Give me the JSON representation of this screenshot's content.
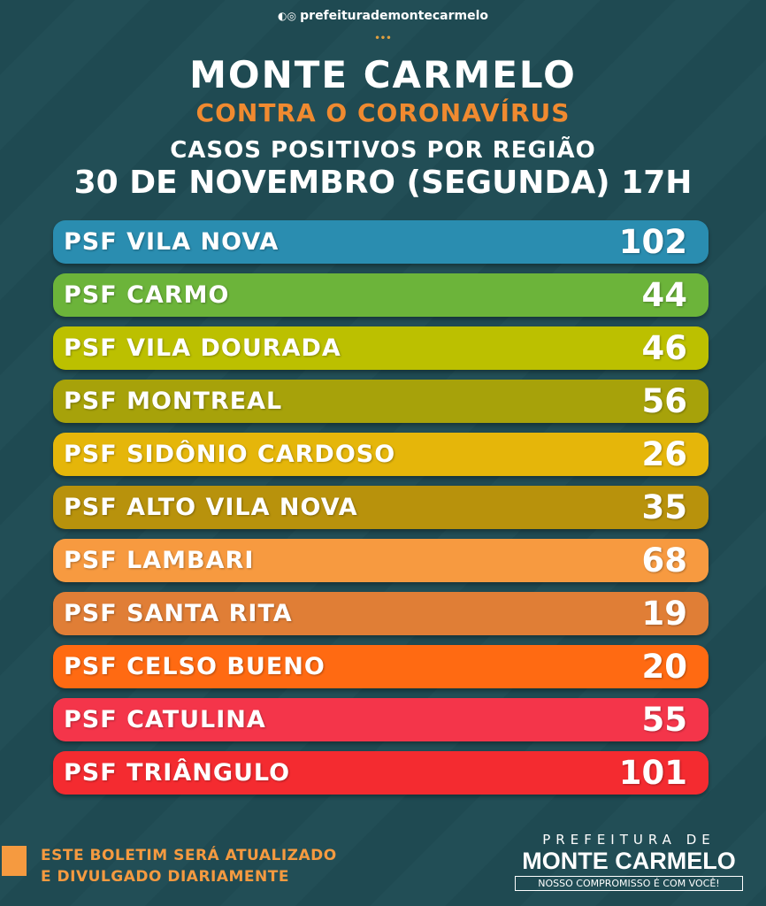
{
  "header": {
    "handle": "prefeiturademontecarmelo",
    "title": "MONTE CARMELO",
    "subtitle": "CONTRA O CORONAVÍRUS",
    "heading": "CASOS POSITIVOS POR REGIÃO",
    "date": "30 DE NOVEMBRO (SEGUNDA) 17H"
  },
  "rows": [
    {
      "label": "PSF VILA NOVA",
      "value": 102,
      "color": "#2a8db0"
    },
    {
      "label": "PSF CARMO",
      "value": 44,
      "color": "#6cb43a"
    },
    {
      "label": "PSF VILA DOURADA",
      "value": 46,
      "color": "#bcc000"
    },
    {
      "label": "PSF MONTREAL",
      "value": 56,
      "color": "#a7a20a"
    },
    {
      "label": "PSF SIDÔNIO CARDOSO",
      "value": 26,
      "color": "#e5b60a"
    },
    {
      "label": "PSF ALTO VILA NOVA",
      "value": 35,
      "color": "#b8920c"
    },
    {
      "label": "PSF LAMBARI",
      "value": 68,
      "color": "#f79a40"
    },
    {
      "label": "PSF SANTA RITA",
      "value": 19,
      "color": "#e07e36"
    },
    {
      "label": "PSF CELSO BUENO",
      "value": 20,
      "color": "#ff6a12"
    },
    {
      "label": "PSF CATULINA",
      "value": 55,
      "color": "#f4354a"
    },
    {
      "label": "PSF TRIÂNGULO",
      "value": 101,
      "color": "#f42b30"
    }
  ],
  "footer": {
    "notice": [
      "ESTE BOLETIM SERÁ ATUALIZADO",
      "E DIVULGADO DIARIAMENTE"
    ],
    "logo_top": "PREFEITURA DE",
    "logo_name": "MONTE CARMELO",
    "logo_slogan": "NOSSO COMPROMISSO É COM VOCÊ!"
  }
}
